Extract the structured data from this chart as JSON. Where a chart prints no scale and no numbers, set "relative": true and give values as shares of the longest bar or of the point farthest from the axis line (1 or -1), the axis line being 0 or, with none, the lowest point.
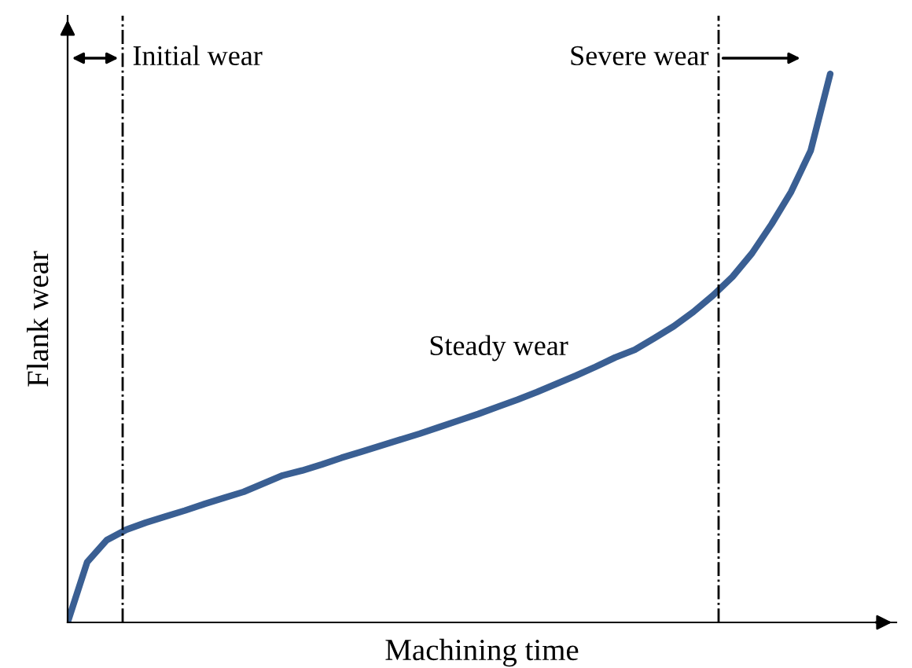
{
  "chart_data": {
    "type": "line",
    "relative": true,
    "xlabel": "Machining time",
    "ylabel": "Flank wear",
    "categories": [
      null,
      null,
      null,
      null,
      null,
      null,
      null,
      null,
      null,
      null,
      null,
      null,
      null,
      null,
      null,
      null,
      null,
      null,
      null,
      null,
      null,
      null,
      null,
      null,
      null,
      null,
      null,
      null,
      null,
      null,
      null,
      null,
      null,
      null,
      null,
      null,
      null,
      null,
      null,
      null
    ],
    "series": [
      {
        "color": "#3a5f93",
        "values": [
          0,
          0.11,
          0.15,
          0.169,
          0.182,
          0.193,
          0.204,
          0.216,
          0.227,
          0.238,
          0.253,
          0.268,
          0.277,
          0.288,
          0.3,
          0.311,
          0.322,
          0.333,
          0.344,
          0.356,
          0.368,
          0.38,
          0.393,
          0.406,
          0.42,
          0.435,
          0.45,
          0.466,
          0.483,
          0.497,
          0.518,
          0.54,
          0.566,
          0.596,
          0.63,
          0.673,
          0.726,
          0.785,
          0.86,
          1.0
        ]
      }
    ],
    "annotations": [
      "Initial wear",
      "Steady wear",
      "Severe wear"
    ],
    "legend": false
  }
}
